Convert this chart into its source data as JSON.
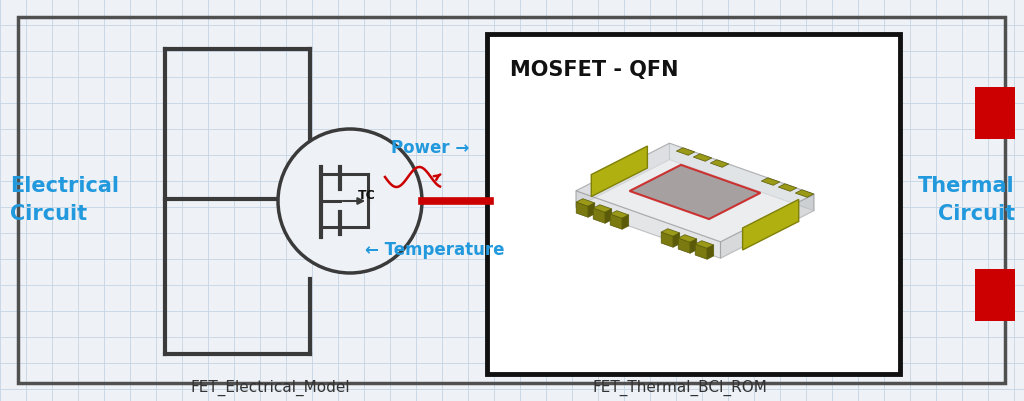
{
  "bg_color": "#eef2f7",
  "grid_color": "#c5d5e5",
  "border_color": "#505050",
  "box_color": "#111111",
  "red_color": "#cc0000",
  "blue_color": "#2299dd",
  "dark_gray": "#3a3a3a",
  "white": "#ffffff",
  "label_left": "Electrical\nCircuit",
  "label_right": "Thermal\nCircuit",
  "label_bottom_left": "FET_Electrical_Model",
  "label_bottom_right": "FET_Thermal_BCI_ROM",
  "mosfet_title": "MOSFET - QFN",
  "power_label": "Power →",
  "temp_label": "← Temperature",
  "tc_label": "TC",
  "figw": 10.24,
  "figh": 4.02,
  "dpi": 100
}
